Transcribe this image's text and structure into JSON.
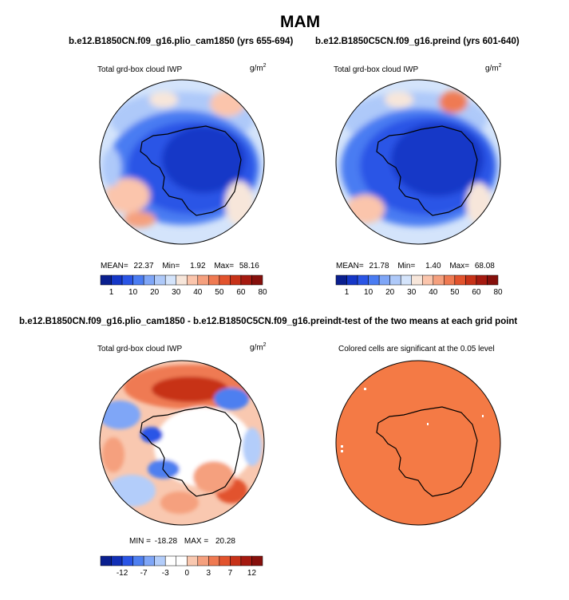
{
  "main_title": "MAM",
  "chart_data": [
    {
      "type": "heatmap",
      "projection": "south-polar-stereographic",
      "title": "b.e12.B1850CN.f09_g16.plio_cam1850 (yrs 655-694)",
      "variable": "Total grd-box cloud IWP",
      "units_base": "g/m",
      "units_exp": "2",
      "stats": {
        "mean_label": "MEAN=",
        "mean": "22.37",
        "min_label": "Min=",
        "min": "1.92",
        "max_label": "Max=",
        "max": "58.16"
      },
      "colorbar": {
        "colors": [
          "#0a1f8f",
          "#1537c7",
          "#2a55e6",
          "#4a7cf2",
          "#7fa6f7",
          "#aec9f9",
          "#d4e4fb",
          "#f7e6da",
          "#fbc5ac",
          "#f5a07e",
          "#ef7a52",
          "#e2532d",
          "#c73218",
          "#a51a10",
          "#86100c"
        ],
        "tick_labels": [
          "1",
          "10",
          "20",
          "30",
          "40",
          "50",
          "60",
          "80"
        ]
      }
    },
    {
      "type": "heatmap",
      "projection": "south-polar-stereographic",
      "title": "b.e12.B1850C5CN.f09_g16.preind (yrs 601-640)",
      "variable": "Total grd-box cloud IWP",
      "units_base": "g/m",
      "units_exp": "2",
      "stats": {
        "mean_label": "MEAN=",
        "mean": "21.78",
        "min_label": "Min=",
        "min": "1.40",
        "max_label": "Max=",
        "max": "68.08"
      },
      "colorbar": {
        "colors": [
          "#0a1f8f",
          "#1537c7",
          "#2a55e6",
          "#4a7cf2",
          "#7fa6f7",
          "#aec9f9",
          "#d4e4fb",
          "#f7e6da",
          "#fbc5ac",
          "#f5a07e",
          "#ef7a52",
          "#e2532d",
          "#c73218",
          "#a51a10",
          "#86100c"
        ],
        "tick_labels": [
          "1",
          "10",
          "20",
          "30",
          "40",
          "50",
          "60",
          "80"
        ]
      }
    },
    {
      "type": "heatmap",
      "projection": "south-polar-stereographic",
      "title": "b.e12.B1850CN.f09_g16.plio_cam1850 - b.e12.B1850C5CN.f09_g16.preind",
      "variable": "Total grd-box cloud IWP",
      "units_base": "g/m",
      "units_exp": "2",
      "stats": {
        "min_label": "MIN =",
        "min": "-18.28",
        "max_label": "MAX =",
        "max": "20.28"
      },
      "colorbar": {
        "colors": [
          "#0a1f8f",
          "#1230b6",
          "#2a55e6",
          "#4e7ff0",
          "#7fa6f7",
          "#b3cdfa",
          "#ffffff",
          "#ffffff",
          "#f9c8b0",
          "#f5a07e",
          "#ef7a52",
          "#e2532d",
          "#c73218",
          "#a51a10",
          "#86100c"
        ],
        "tick_labels": [
          "-12",
          "-7",
          "-3",
          "0",
          "3",
          "7",
          "12"
        ]
      }
    },
    {
      "type": "heatmap",
      "projection": "south-polar-stereographic",
      "title": "t-test of the two means at each grid point",
      "subtitle": "Colored cells are significant at the 0.05 level",
      "fill_color": "#f47a45"
    }
  ]
}
